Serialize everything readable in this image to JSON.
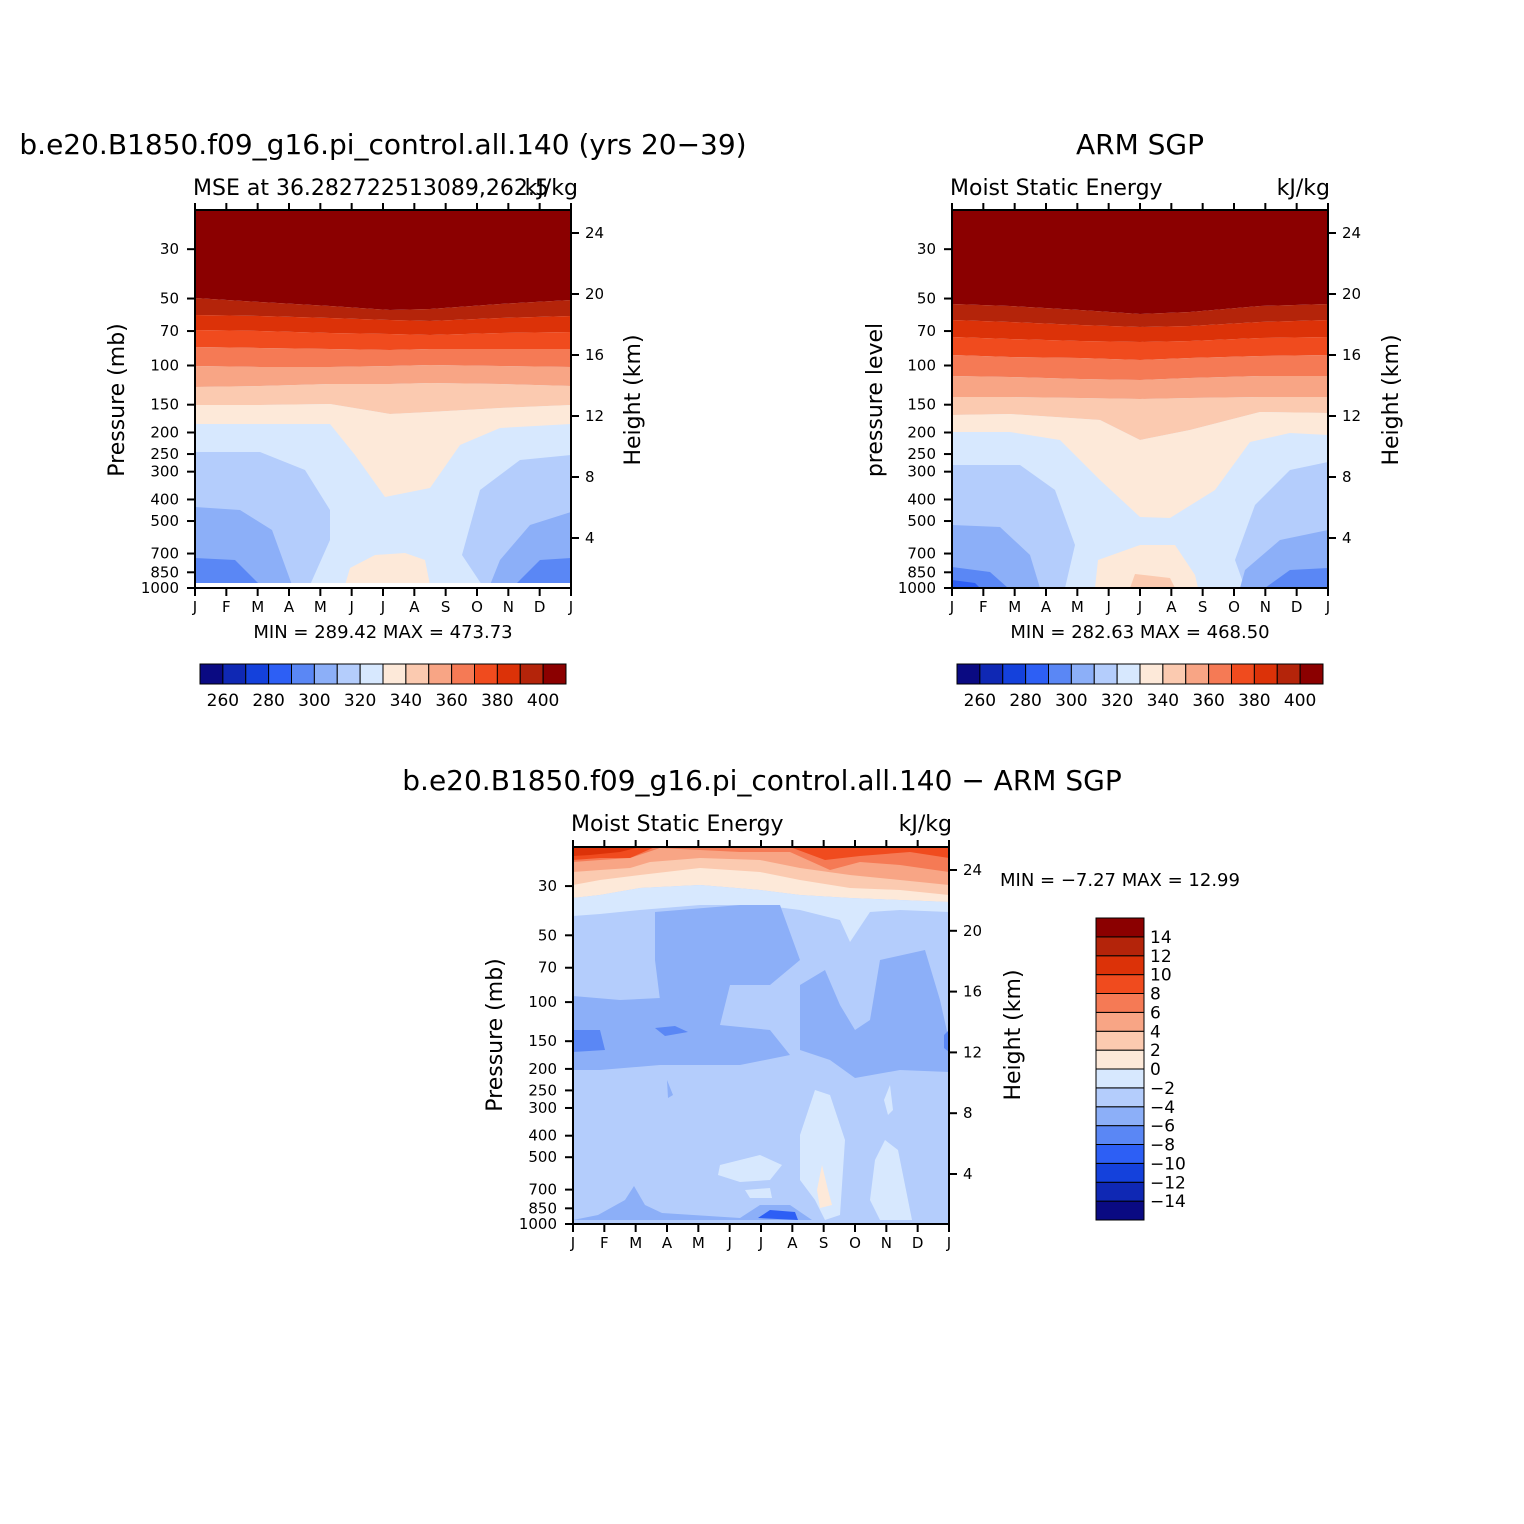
{
  "colors": {
    "positive_scale": [
      "#0a0a82",
      "#0f28b4",
      "#1441dc",
      "#2d5ff5",
      "#5a87f5",
      "#8caff8",
      "#b4cdfc",
      "#d7e8fe",
      "#fde9d9",
      "#fbcab0",
      "#f8a585",
      "#f57a55",
      "#f04b1e",
      "#dc3208",
      "#b4240a",
      "#8b0000"
    ],
    "diff_scale": [
      "#0a0a82",
      "#0f28b4",
      "#1441dc",
      "#2d5ff5",
      "#5a87f5",
      "#8caff8",
      "#b4cdfc",
      "#d7e8fe",
      "#fde9d9",
      "#fbcab0",
      "#f8a585",
      "#f57a55",
      "#f04b1e",
      "#dc3208",
      "#b4240a",
      "#8b0000"
    ]
  },
  "charts": {
    "left": {
      "title": "b.e20.B1850.f09_g16.pi_control.all.140 (yrs 20−39)",
      "subtitle_left": "MSE at 36.282722513089,262.5",
      "subtitle_right": "kJ/kg",
      "ylabel_left": "Pressure (mb)",
      "ylabel_right": "Height (km)",
      "minmax": "MIN = 289.42 MAX = 473.73"
    },
    "right": {
      "title": "ARM SGP",
      "subtitle_left": "Moist Static Energy",
      "subtitle_right": "kJ/kg",
      "ylabel_left": "pressure level",
      "ylabel_right": "Height (km)",
      "minmax": "MIN = 282.63 MAX = 468.50"
    },
    "diff": {
      "title": "b.e20.B1850.f09_g16.pi_control.all.140 − ARM SGP",
      "subtitle_left": "Moist Static Energy",
      "subtitle_right": "kJ/kg",
      "ylabel_left": "Pressure (mb)",
      "ylabel_right": "Height (km)",
      "minmax": "MIN =   −7.27 MAX =   12.99"
    }
  },
  "chart_data": [
    {
      "type": "heatmap",
      "title": "b.e20.B1850.f09_g16.pi_control.all.140 (yrs 20−39)",
      "subtitle": "MSE at 36.282722513089,262.5",
      "units": "kJ/kg",
      "xlabel": "",
      "ylabel": "Pressure (mb)",
      "ylabel_right": "Height (km)",
      "x_ticks": [
        "J",
        "F",
        "M",
        "A",
        "M",
        "J",
        "J",
        "A",
        "S",
        "O",
        "N",
        "D",
        "J"
      ],
      "y_ticks": [
        "30",
        "50",
        "70",
        "100",
        "150",
        "200",
        "250",
        "300",
        "400",
        "500",
        "700",
        "850",
        "1000"
      ],
      "y2_ticks": [
        "24",
        "20",
        "16",
        "12",
        "8",
        "4"
      ],
      "colorbar_ticks": [
        "260",
        "280",
        "300",
        "320",
        "340",
        "360",
        "380",
        "400"
      ],
      "min": 289.42,
      "max": 473.73
    },
    {
      "type": "heatmap",
      "title": "ARM SGP",
      "subtitle": "Moist Static Energy",
      "units": "kJ/kg",
      "xlabel": "",
      "ylabel": "pressure level",
      "ylabel_right": "Height (km)",
      "x_ticks": [
        "J",
        "F",
        "M",
        "A",
        "M",
        "J",
        "J",
        "A",
        "S",
        "O",
        "N",
        "D",
        "J"
      ],
      "y_ticks": [
        "30",
        "50",
        "70",
        "100",
        "150",
        "200",
        "250",
        "300",
        "400",
        "500",
        "700",
        "850",
        "1000"
      ],
      "y2_ticks": [
        "24",
        "20",
        "16",
        "12",
        "8",
        "4"
      ],
      "colorbar_ticks": [
        "260",
        "280",
        "300",
        "320",
        "340",
        "360",
        "380",
        "400"
      ],
      "min": 282.63,
      "max": 468.5
    },
    {
      "type": "heatmap",
      "title": "b.e20.B1850.f09_g16.pi_control.all.140 − ARM SGP",
      "subtitle": "Moist Static Energy",
      "units": "kJ/kg",
      "xlabel": "",
      "ylabel": "Pressure (mb)",
      "ylabel_right": "Height (km)",
      "x_ticks": [
        "J",
        "F",
        "M",
        "A",
        "M",
        "J",
        "J",
        "A",
        "S",
        "O",
        "N",
        "D",
        "J"
      ],
      "y_ticks": [
        "30",
        "50",
        "70",
        "100",
        "150",
        "200",
        "250",
        "300",
        "400",
        "500",
        "700",
        "850",
        "1000"
      ],
      "y2_ticks": [
        "24",
        "20",
        "16",
        "12",
        "8",
        "4"
      ],
      "colorbar_ticks": [
        "14",
        "12",
        "10",
        "8",
        "6",
        "4",
        "2",
        "0",
        "−2",
        "−4",
        "−6",
        "−8",
        "−10",
        "−12",
        "−14"
      ],
      "min": -7.27,
      "max": 12.99
    }
  ]
}
